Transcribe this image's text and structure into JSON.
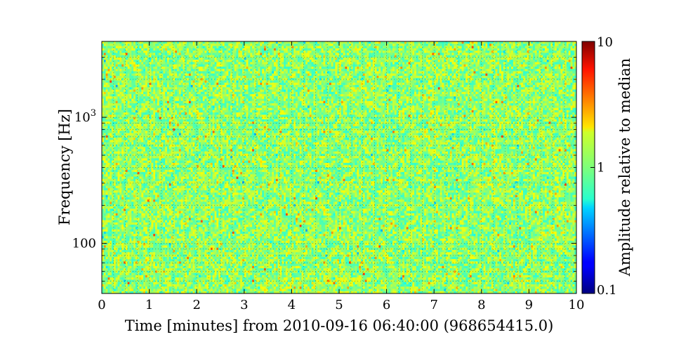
{
  "chart_data": {
    "type": "heatmap",
    "title": "",
    "xlabel": "Time [minutes] from 2010-09-16 06:40:00 (968654415.0)",
    "ylabel": "Frequency [Hz]",
    "x_range": [
      0,
      10
    ],
    "x_ticks": [
      0,
      1,
      2,
      3,
      4,
      5,
      6,
      7,
      8,
      9,
      10
    ],
    "x_tick_labels": [
      "0",
      "1",
      "2",
      "3",
      "4",
      "5",
      "6",
      "7",
      "8",
      "9",
      "10"
    ],
    "y_scale": "log",
    "y_range": [
      40,
      4000
    ],
    "y_ticks": [
      100,
      1000
    ],
    "y_tick_labels": [
      "100",
      "10^3"
    ],
    "grid": true,
    "colorbar": {
      "label": "Amplitude relative to median",
      "scale": "log",
      "range": [
        0.1,
        10
      ],
      "ticks": [
        0.1,
        1,
        10
      ],
      "tick_labels": [
        "0.1",
        "1",
        "10"
      ],
      "colormap": "jet"
    },
    "values_summary": {
      "typical_value": 1,
      "typical_range": [
        0.5,
        2.5
      ],
      "notes": "Whitened spectrogram; nearly uniform amplitude around 1 with small hot spots near 3.5-5 min at lowest frequencies."
    }
  }
}
